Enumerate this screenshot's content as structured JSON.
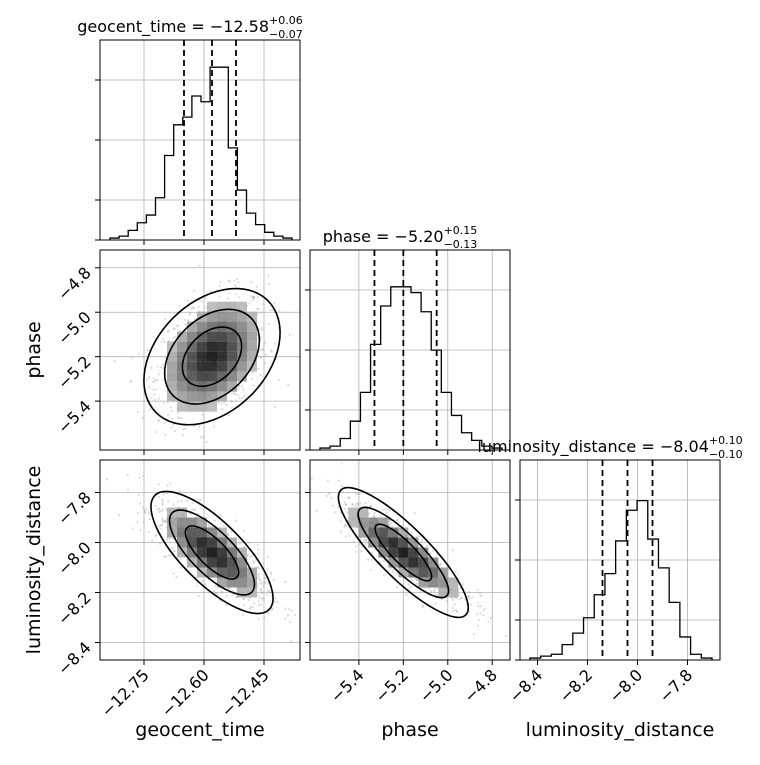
{
  "chart_data": {
    "type": "corner",
    "parameters": [
      "geocent_time",
      "phase",
      "luminosity_distance"
    ],
    "titles": [
      {
        "main": "geocent_time = −12.58",
        "plus": "+0.06",
        "minus": "−0.07"
      },
      {
        "main": "phase = −5.20",
        "plus": "+0.15",
        "minus": "−0.13"
      },
      {
        "main": "luminosity_distance = −8.04",
        "plus": "+0.10",
        "minus": "−0.10"
      }
    ],
    "ranges": {
      "geocent_time": [
        -12.86,
        -12.36
      ],
      "phase": [
        -5.62,
        -4.72
      ],
      "luminosity_distance": [
        -8.47,
        -7.67
      ]
    },
    "ticks": {
      "geocent_time": [
        -12.75,
        -12.6,
        -12.45
      ],
      "phase": [
        -5.4,
        -5.2,
        -5.0,
        -4.8
      ],
      "luminosity_distance": [
        -8.4,
        -8.2,
        -8.0,
        -7.8
      ]
    },
    "tick_labels": {
      "geocent_time": [
        "−12.75",
        "−12.60",
        "−12.45"
      ],
      "phase": [
        "−5.4",
        "−5.2",
        "−5.0",
        "−4.8"
      ],
      "luminosity_distance": [
        "−8.4",
        "−8.2",
        "−8.0",
        "−7.8"
      ]
    },
    "quantiles": {
      "geocent_time": [
        -12.65,
        -12.58,
        -12.52
      ],
      "phase": [
        -5.33,
        -5.2,
        -5.05
      ],
      "luminosity_distance": [
        -8.14,
        -8.04,
        -7.94
      ]
    },
    "histograms": {
      "geocent_time": [
        1,
        2,
        5,
        9,
        13,
        22,
        44,
        60,
        64,
        75,
        72,
        90,
        90,
        48,
        26,
        14,
        8,
        4,
        2,
        1
      ],
      "phase": [
        1,
        2,
        6,
        15,
        30,
        55,
        75,
        85,
        85,
        82,
        72,
        52,
        30,
        18,
        9,
        5,
        2,
        1
      ],
      "luminosity_distance": [
        1,
        2,
        3,
        8,
        14,
        22,
        34,
        45,
        62,
        78,
        83,
        63,
        48,
        30,
        12,
        3,
        1
      ]
    },
    "histogram_ylim": [
      0,
      100
    ],
    "grid": true
  }
}
